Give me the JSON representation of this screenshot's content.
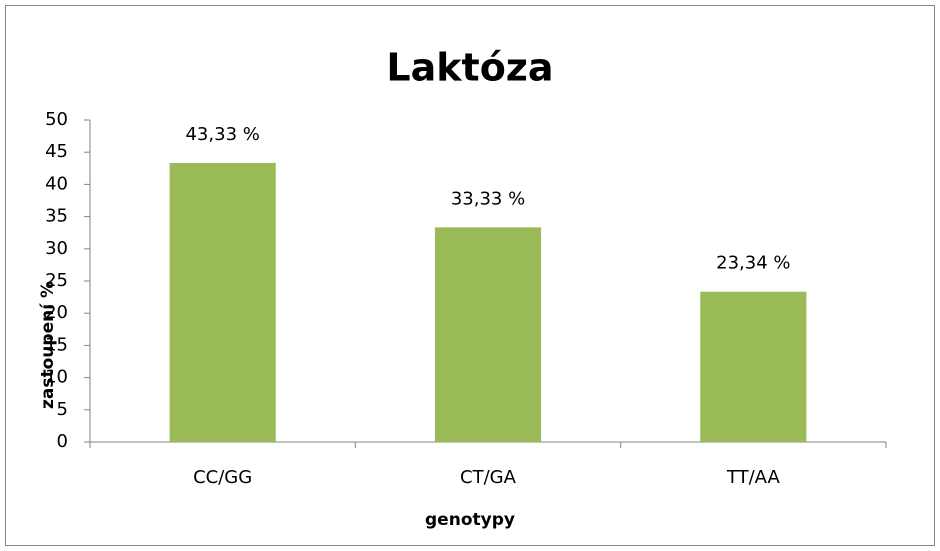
{
  "chart_data": {
    "type": "bar",
    "title": "Laktóza",
    "x_label": "genotypy",
    "y_label": "zastoupení %",
    "categories": [
      "CC/GG",
      "CT/GA",
      "TT/AA"
    ],
    "values": [
      43.33,
      33.33,
      23.34
    ],
    "value_labels": [
      "43,33 %",
      "33,33 %",
      "23,34 %"
    ],
    "color": "#9bbb59",
    "ylim": [
      0,
      50
    ],
    "yticks": [
      0,
      5,
      10,
      15,
      20,
      25,
      30,
      35,
      40,
      45,
      50
    ],
    "grid": false
  }
}
